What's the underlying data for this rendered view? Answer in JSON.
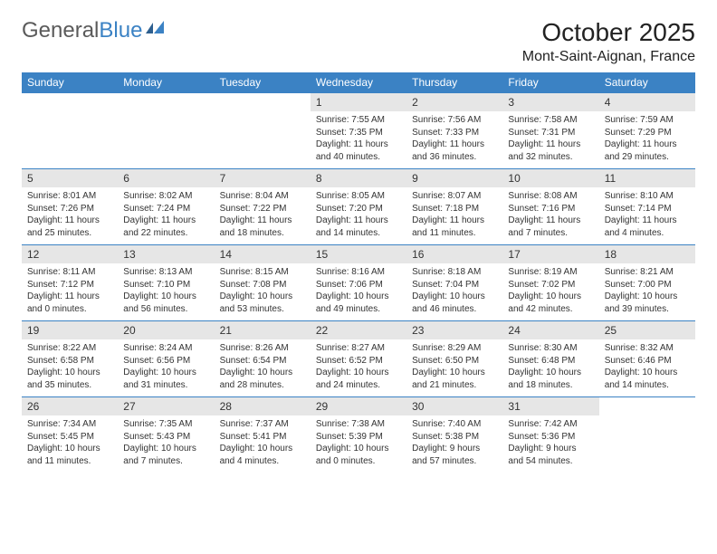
{
  "logo": {
    "text1": "General",
    "text2": "Blue"
  },
  "title": "October 2025",
  "location": "Mont-Saint-Aignan, France",
  "colors": {
    "header_bg": "#3b82c4",
    "header_text": "#ffffff",
    "date_bg": "#e6e6e6",
    "border": "#3b82c4",
    "text": "#333333",
    "bg": "#ffffff"
  },
  "weekdays": [
    "Sunday",
    "Monday",
    "Tuesday",
    "Wednesday",
    "Thursday",
    "Friday",
    "Saturday"
  ],
  "weeks": [
    {
      "days": [
        null,
        null,
        null,
        {
          "n": "1",
          "sr": "Sunrise: 7:55 AM",
          "ss": "Sunset: 7:35 PM",
          "d1": "Daylight: 11 hours",
          "d2": "and 40 minutes."
        },
        {
          "n": "2",
          "sr": "Sunrise: 7:56 AM",
          "ss": "Sunset: 7:33 PM",
          "d1": "Daylight: 11 hours",
          "d2": "and 36 minutes."
        },
        {
          "n": "3",
          "sr": "Sunrise: 7:58 AM",
          "ss": "Sunset: 7:31 PM",
          "d1": "Daylight: 11 hours",
          "d2": "and 32 minutes."
        },
        {
          "n": "4",
          "sr": "Sunrise: 7:59 AM",
          "ss": "Sunset: 7:29 PM",
          "d1": "Daylight: 11 hours",
          "d2": "and 29 minutes."
        }
      ]
    },
    {
      "days": [
        {
          "n": "5",
          "sr": "Sunrise: 8:01 AM",
          "ss": "Sunset: 7:26 PM",
          "d1": "Daylight: 11 hours",
          "d2": "and 25 minutes."
        },
        {
          "n": "6",
          "sr": "Sunrise: 8:02 AM",
          "ss": "Sunset: 7:24 PM",
          "d1": "Daylight: 11 hours",
          "d2": "and 22 minutes."
        },
        {
          "n": "7",
          "sr": "Sunrise: 8:04 AM",
          "ss": "Sunset: 7:22 PM",
          "d1": "Daylight: 11 hours",
          "d2": "and 18 minutes."
        },
        {
          "n": "8",
          "sr": "Sunrise: 8:05 AM",
          "ss": "Sunset: 7:20 PM",
          "d1": "Daylight: 11 hours",
          "d2": "and 14 minutes."
        },
        {
          "n": "9",
          "sr": "Sunrise: 8:07 AM",
          "ss": "Sunset: 7:18 PM",
          "d1": "Daylight: 11 hours",
          "d2": "and 11 minutes."
        },
        {
          "n": "10",
          "sr": "Sunrise: 8:08 AM",
          "ss": "Sunset: 7:16 PM",
          "d1": "Daylight: 11 hours",
          "d2": "and 7 minutes."
        },
        {
          "n": "11",
          "sr": "Sunrise: 8:10 AM",
          "ss": "Sunset: 7:14 PM",
          "d1": "Daylight: 11 hours",
          "d2": "and 4 minutes."
        }
      ]
    },
    {
      "days": [
        {
          "n": "12",
          "sr": "Sunrise: 8:11 AM",
          "ss": "Sunset: 7:12 PM",
          "d1": "Daylight: 11 hours",
          "d2": "and 0 minutes."
        },
        {
          "n": "13",
          "sr": "Sunrise: 8:13 AM",
          "ss": "Sunset: 7:10 PM",
          "d1": "Daylight: 10 hours",
          "d2": "and 56 minutes."
        },
        {
          "n": "14",
          "sr": "Sunrise: 8:15 AM",
          "ss": "Sunset: 7:08 PM",
          "d1": "Daylight: 10 hours",
          "d2": "and 53 minutes."
        },
        {
          "n": "15",
          "sr": "Sunrise: 8:16 AM",
          "ss": "Sunset: 7:06 PM",
          "d1": "Daylight: 10 hours",
          "d2": "and 49 minutes."
        },
        {
          "n": "16",
          "sr": "Sunrise: 8:18 AM",
          "ss": "Sunset: 7:04 PM",
          "d1": "Daylight: 10 hours",
          "d2": "and 46 minutes."
        },
        {
          "n": "17",
          "sr": "Sunrise: 8:19 AM",
          "ss": "Sunset: 7:02 PM",
          "d1": "Daylight: 10 hours",
          "d2": "and 42 minutes."
        },
        {
          "n": "18",
          "sr": "Sunrise: 8:21 AM",
          "ss": "Sunset: 7:00 PM",
          "d1": "Daylight: 10 hours",
          "d2": "and 39 minutes."
        }
      ]
    },
    {
      "days": [
        {
          "n": "19",
          "sr": "Sunrise: 8:22 AM",
          "ss": "Sunset: 6:58 PM",
          "d1": "Daylight: 10 hours",
          "d2": "and 35 minutes."
        },
        {
          "n": "20",
          "sr": "Sunrise: 8:24 AM",
          "ss": "Sunset: 6:56 PM",
          "d1": "Daylight: 10 hours",
          "d2": "and 31 minutes."
        },
        {
          "n": "21",
          "sr": "Sunrise: 8:26 AM",
          "ss": "Sunset: 6:54 PM",
          "d1": "Daylight: 10 hours",
          "d2": "and 28 minutes."
        },
        {
          "n": "22",
          "sr": "Sunrise: 8:27 AM",
          "ss": "Sunset: 6:52 PM",
          "d1": "Daylight: 10 hours",
          "d2": "and 24 minutes."
        },
        {
          "n": "23",
          "sr": "Sunrise: 8:29 AM",
          "ss": "Sunset: 6:50 PM",
          "d1": "Daylight: 10 hours",
          "d2": "and 21 minutes."
        },
        {
          "n": "24",
          "sr": "Sunrise: 8:30 AM",
          "ss": "Sunset: 6:48 PM",
          "d1": "Daylight: 10 hours",
          "d2": "and 18 minutes."
        },
        {
          "n": "25",
          "sr": "Sunrise: 8:32 AM",
          "ss": "Sunset: 6:46 PM",
          "d1": "Daylight: 10 hours",
          "d2": "and 14 minutes."
        }
      ]
    },
    {
      "days": [
        {
          "n": "26",
          "sr": "Sunrise: 7:34 AM",
          "ss": "Sunset: 5:45 PM",
          "d1": "Daylight: 10 hours",
          "d2": "and 11 minutes."
        },
        {
          "n": "27",
          "sr": "Sunrise: 7:35 AM",
          "ss": "Sunset: 5:43 PM",
          "d1": "Daylight: 10 hours",
          "d2": "and 7 minutes."
        },
        {
          "n": "28",
          "sr": "Sunrise: 7:37 AM",
          "ss": "Sunset: 5:41 PM",
          "d1": "Daylight: 10 hours",
          "d2": "and 4 minutes."
        },
        {
          "n": "29",
          "sr": "Sunrise: 7:38 AM",
          "ss": "Sunset: 5:39 PM",
          "d1": "Daylight: 10 hours",
          "d2": "and 0 minutes."
        },
        {
          "n": "30",
          "sr": "Sunrise: 7:40 AM",
          "ss": "Sunset: 5:38 PM",
          "d1": "Daylight: 9 hours",
          "d2": "and 57 minutes."
        },
        {
          "n": "31",
          "sr": "Sunrise: 7:42 AM",
          "ss": "Sunset: 5:36 PM",
          "d1": "Daylight: 9 hours",
          "d2": "and 54 minutes."
        },
        null
      ]
    }
  ]
}
